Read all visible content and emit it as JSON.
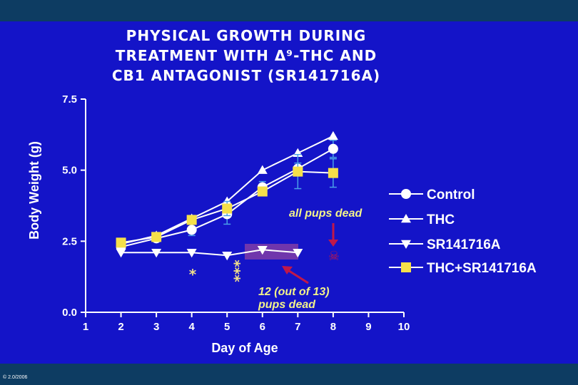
{
  "slide": {
    "title_lines": [
      "PHYSICAL GROWTH DURING",
      "TREATMENT WITH Δ⁹-THC AND",
      "CB1 ANTAGONIST (SR141716A)"
    ],
    "copyright": "© 2.0/2006",
    "colors": {
      "background": "#1414c8",
      "band": "#0d3c62",
      "axes": "#ffffff",
      "highlight_box": "#7a3aa8",
      "arrow": "#c0184a",
      "annotation_text": "#f2f28a",
      "thc_sr_marker": "#f5e04a"
    }
  },
  "chart_data": {
    "type": "line",
    "title": "PHYSICAL GROWTH DURING TREATMENT WITH Δ⁹-THC AND CB1 ANTAGONIST (SR141716A)",
    "xlabel": "Day of Age",
    "ylabel": "Body Weight (g)",
    "xlim": [
      1,
      10
    ],
    "ylim": [
      0,
      7.5
    ],
    "x_ticks": [
      "1",
      "2",
      "3",
      "4",
      "5",
      "6",
      "7",
      "8",
      "9",
      "10"
    ],
    "y_ticks": [
      "0.0",
      "2.5",
      "5.0",
      "7.5"
    ],
    "legend_position": "right",
    "series": [
      {
        "name": "Control",
        "marker": "circle",
        "color": "#ffffff",
        "x": [
          2,
          3,
          4,
          5,
          6,
          7,
          8
        ],
        "y": [
          2.3,
          2.6,
          2.9,
          3.45,
          4.4,
          5.05,
          5.75
        ],
        "err": [
          0.1,
          0.1,
          0.2,
          0.35,
          0.2,
          0.2,
          0.3
        ]
      },
      {
        "name": "THC",
        "marker": "triangle-up",
        "color": "#ffffff",
        "x": [
          2,
          3,
          4,
          5,
          6,
          7,
          8
        ],
        "y": [
          2.4,
          2.7,
          3.3,
          3.9,
          5.0,
          5.6,
          6.2
        ],
        "err": [
          0,
          0,
          0,
          0,
          0,
          0,
          0
        ]
      },
      {
        "name": "SR141716A",
        "marker": "triangle-down",
        "color": "#ffffff",
        "x": [
          2,
          3,
          4,
          5,
          6,
          7
        ],
        "y": [
          2.1,
          2.1,
          2.1,
          2.0,
          2.2,
          2.1
        ],
        "err": [
          0,
          0,
          0,
          0,
          0,
          0
        ]
      },
      {
        "name": "THC+SR141716A",
        "marker": "square",
        "color": "#f5e04a",
        "x": [
          2,
          3,
          4,
          5,
          6,
          7,
          8
        ],
        "y": [
          2.45,
          2.65,
          3.25,
          3.65,
          4.25,
          4.95,
          4.9
        ],
        "err": [
          0.1,
          0.1,
          0.15,
          0.25,
          0.15,
          0.6,
          0.5
        ]
      }
    ],
    "annotations": [
      {
        "text": "all pups dead",
        "x": 8,
        "y": 2.0
      },
      {
        "text": "12 (out of 13)",
        "line2": "pups dead",
        "x_range": [
          5.6,
          7.6
        ]
      },
      {
        "text": "*",
        "x": 4
      },
      {
        "text": "***",
        "x": 5
      }
    ]
  }
}
